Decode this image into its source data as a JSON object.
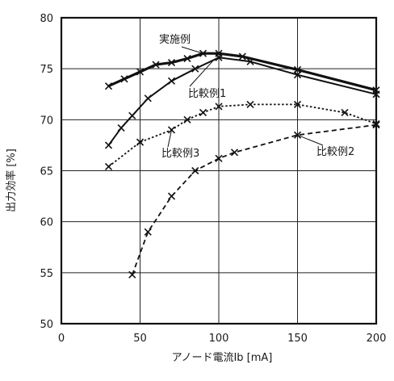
{
  "chart_data": {
    "type": "line",
    "xlabel": "アノード電流Ib [mA]",
    "ylabel": "出力効率 [%]",
    "xlim": [
      0,
      200
    ],
    "ylim": [
      50,
      80
    ],
    "xticks": [
      0,
      50,
      100,
      150,
      200
    ],
    "yticks": [
      50,
      55,
      60,
      65,
      70,
      75,
      80
    ],
    "grid": true,
    "series": [
      {
        "name": "実施例",
        "style": "solid-thick",
        "x": [
          30,
          40,
          50,
          60,
          70,
          80,
          90,
          100,
          115,
          150,
          200
        ],
        "y": [
          73.3,
          74.0,
          74.7,
          75.4,
          75.6,
          76.0,
          76.5,
          76.5,
          76.2,
          74.9,
          72.9
        ]
      },
      {
        "name": "比較例1",
        "style": "solid",
        "x": [
          30,
          38,
          45,
          55,
          70,
          85,
          100,
          120,
          150,
          200
        ],
        "y": [
          67.5,
          69.2,
          70.4,
          72.1,
          73.8,
          75.0,
          76.1,
          75.7,
          74.4,
          72.5
        ]
      },
      {
        "name": "比較例3",
        "style": "dotted",
        "x": [
          30,
          50,
          70,
          80,
          90,
          100,
          120,
          150,
          180,
          200
        ],
        "y": [
          65.4,
          67.8,
          69.0,
          70.0,
          70.7,
          71.3,
          71.5,
          71.5,
          70.7,
          69.6
        ]
      },
      {
        "name": "比較例2",
        "style": "dashed",
        "x": [
          45,
          55,
          70,
          85,
          100,
          110,
          150,
          200
        ],
        "y": [
          54.8,
          59.0,
          62.5,
          65.0,
          66.2,
          66.8,
          68.5,
          69.5
        ]
      }
    ]
  }
}
